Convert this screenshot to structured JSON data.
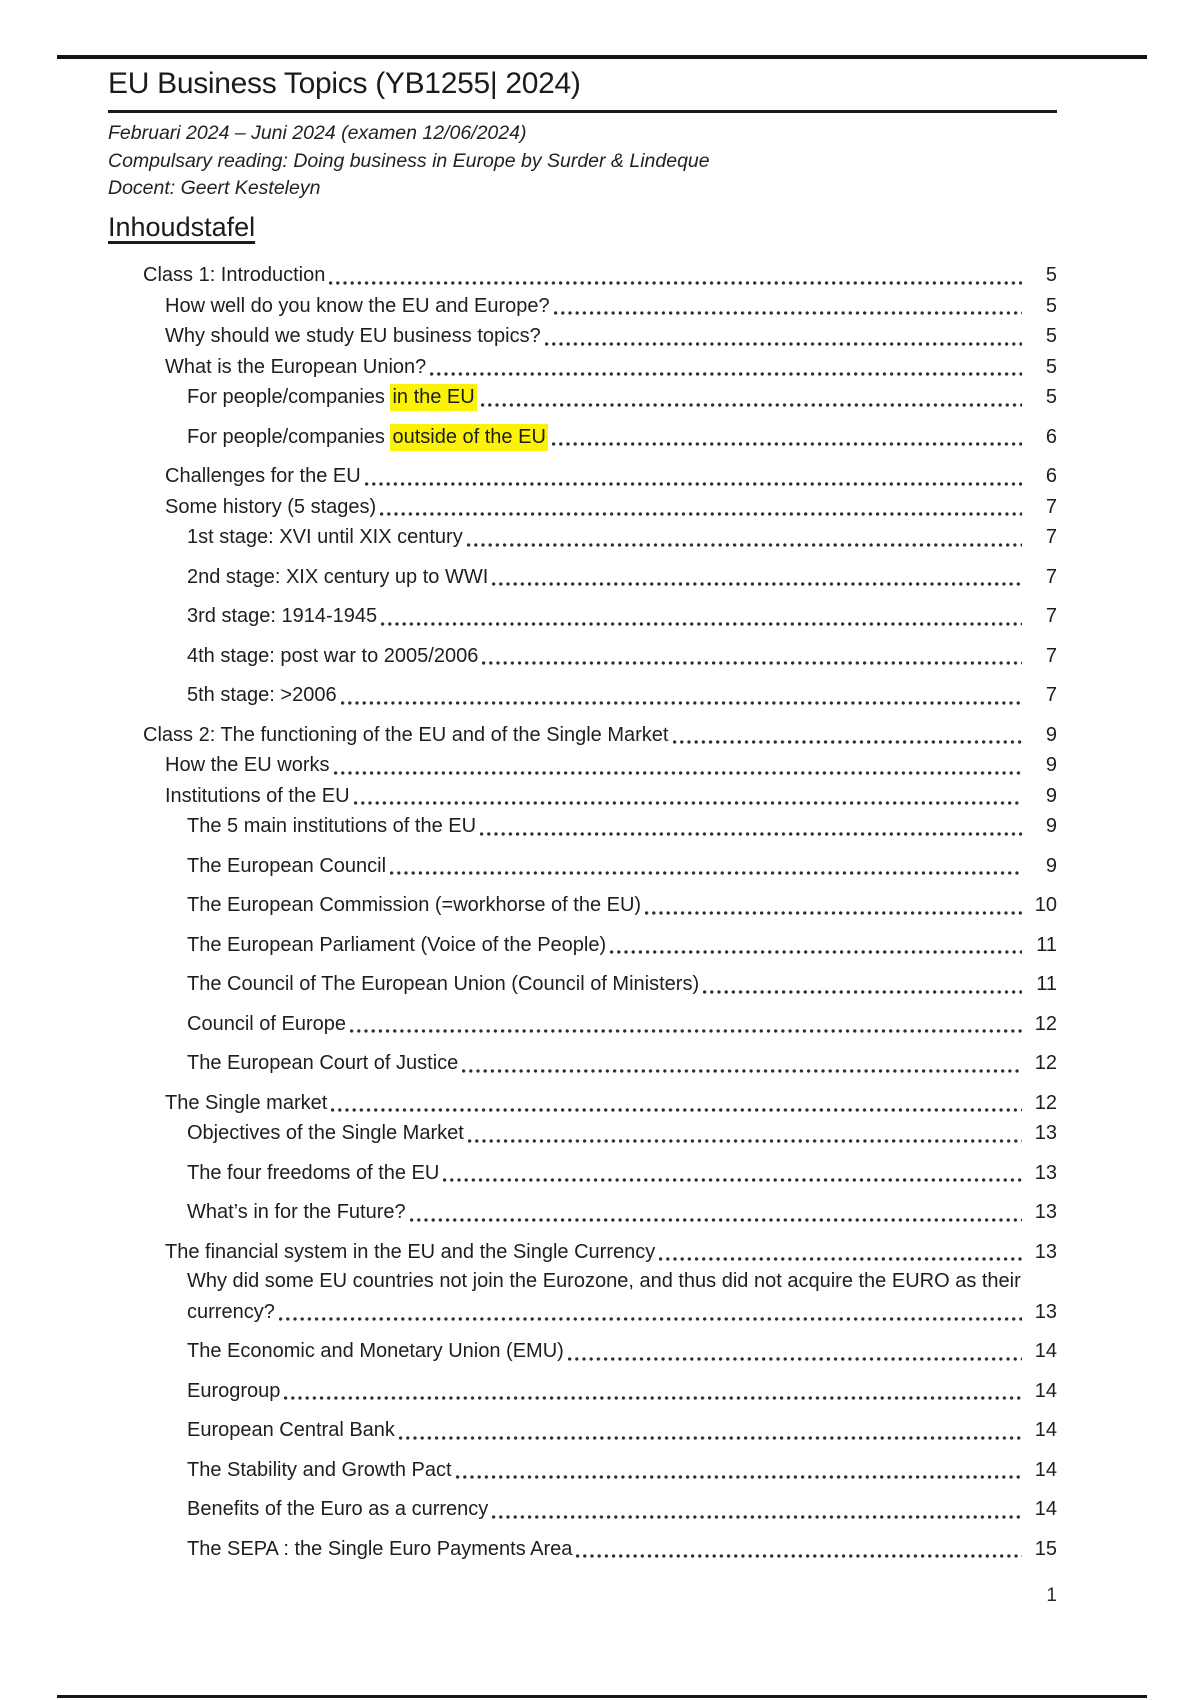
{
  "header": {
    "title": "EU Business Topics (YB1255| 2024)",
    "meta_lines": [
      "Februari 2024 – Juni 2024 (examen 12/06/2024)",
      "Compulsary reading: Doing business in Europe by Surder & Lindeque",
      "Docent: Geert Kesteleyn"
    ]
  },
  "toc": {
    "heading": "Inhoudstafel",
    "entries": [
      {
        "level": 1,
        "text": "Class 1: Introduction",
        "page": "5"
      },
      {
        "level": 2,
        "text": "How well do you know the EU and Europe?",
        "page": "5"
      },
      {
        "level": 2,
        "text": "Why should we study EU business topics?",
        "page": "5"
      },
      {
        "level": 2,
        "text": "What is the European Union?",
        "page": "5"
      },
      {
        "level": 3,
        "parts": [
          {
            "text": "For people/companies "
          },
          {
            "text": "in the EU",
            "highlight": true
          }
        ],
        "page": "5"
      },
      {
        "level": 3,
        "parts": [
          {
            "text": "For people/companies "
          },
          {
            "text": "outside of the EU",
            "highlight": true
          }
        ],
        "page": "6"
      },
      {
        "level": 2,
        "text": "Challenges for the EU",
        "page": "6"
      },
      {
        "level": 2,
        "text": "Some history (5 stages)",
        "page": "7"
      },
      {
        "level": 3,
        "text": "1st stage: XVI until XIX century",
        "page": "7"
      },
      {
        "level": 3,
        "text": "2nd stage: XIX century up to WWI",
        "page": "7"
      },
      {
        "level": 3,
        "text": "3rd stage: 1914-1945",
        "page": "7"
      },
      {
        "level": 3,
        "text": "4th stage: post war to 2005/2006",
        "page": "7"
      },
      {
        "level": 3,
        "text": "5th stage: >2006",
        "page": "7"
      },
      {
        "level": 1,
        "text": "Class 2: The functioning of the EU and of the Single Market",
        "page": "9"
      },
      {
        "level": 2,
        "text": "How the EU works",
        "page": "9"
      },
      {
        "level": 2,
        "text": "Institutions of the EU",
        "page": "9"
      },
      {
        "level": 3,
        "text": "The 5 main institutions of the EU",
        "page": "9"
      },
      {
        "level": 3,
        "text": "The European Council",
        "page": "9"
      },
      {
        "level": 3,
        "text": "The European Commission (=workhorse of the EU)",
        "page": "10"
      },
      {
        "level": 3,
        "text": "The European Parliament (Voice of the People)",
        "page": "11"
      },
      {
        "level": 3,
        "text": "The Council of The European Union (Council of Ministers)",
        "page": "11"
      },
      {
        "level": 3,
        "text": "Council of Europe",
        "page": "12"
      },
      {
        "level": 3,
        "text": "The European Court of Justice",
        "page": "12"
      },
      {
        "level": 2,
        "text": "The Single market",
        "page": "12"
      },
      {
        "level": 3,
        "text": "Objectives of the Single Market",
        "page": "13"
      },
      {
        "level": 3,
        "text": "The four freedoms of the EU",
        "page": "13"
      },
      {
        "level": 3,
        "text": "What’s in for the Future?",
        "page": "13"
      },
      {
        "level": 2,
        "text": "The financial system in the EU and the Single Currency",
        "page": "13"
      },
      {
        "level": 3,
        "lines": [
          "Why did some EU countries not join the Eurozone, and thus did not acquire the EURO as their",
          "currency?"
        ],
        "page": "13"
      },
      {
        "level": 3,
        "text": "The Economic and Monetary Union (EMU)",
        "page": "14"
      },
      {
        "level": 3,
        "text": "Eurogroup",
        "page": "14"
      },
      {
        "level": 3,
        "text": "European Central Bank",
        "page": "14"
      },
      {
        "level": 3,
        "text": "The Stability and Growth Pact",
        "page": "14"
      },
      {
        "level": 3,
        "text": "Benefits of the Euro as a currency",
        "page": "14"
      },
      {
        "level": 3,
        "text": "The SEPA : the Single Euro Payments Area",
        "page": "15"
      }
    ]
  },
  "footer": {
    "page_number": "1"
  },
  "colors": {
    "highlight_yellow": "#fbf205",
    "rule_black": "#141414",
    "text": "#1e1e1e",
    "background": "#ffffff"
  }
}
